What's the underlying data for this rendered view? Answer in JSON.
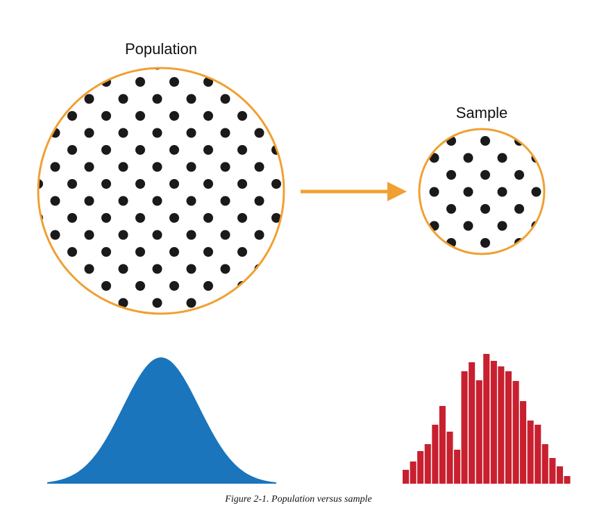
{
  "labels": {
    "population": "Population",
    "sample": "Sample"
  },
  "caption": "Figure 2-1. Population versus sample"
}
